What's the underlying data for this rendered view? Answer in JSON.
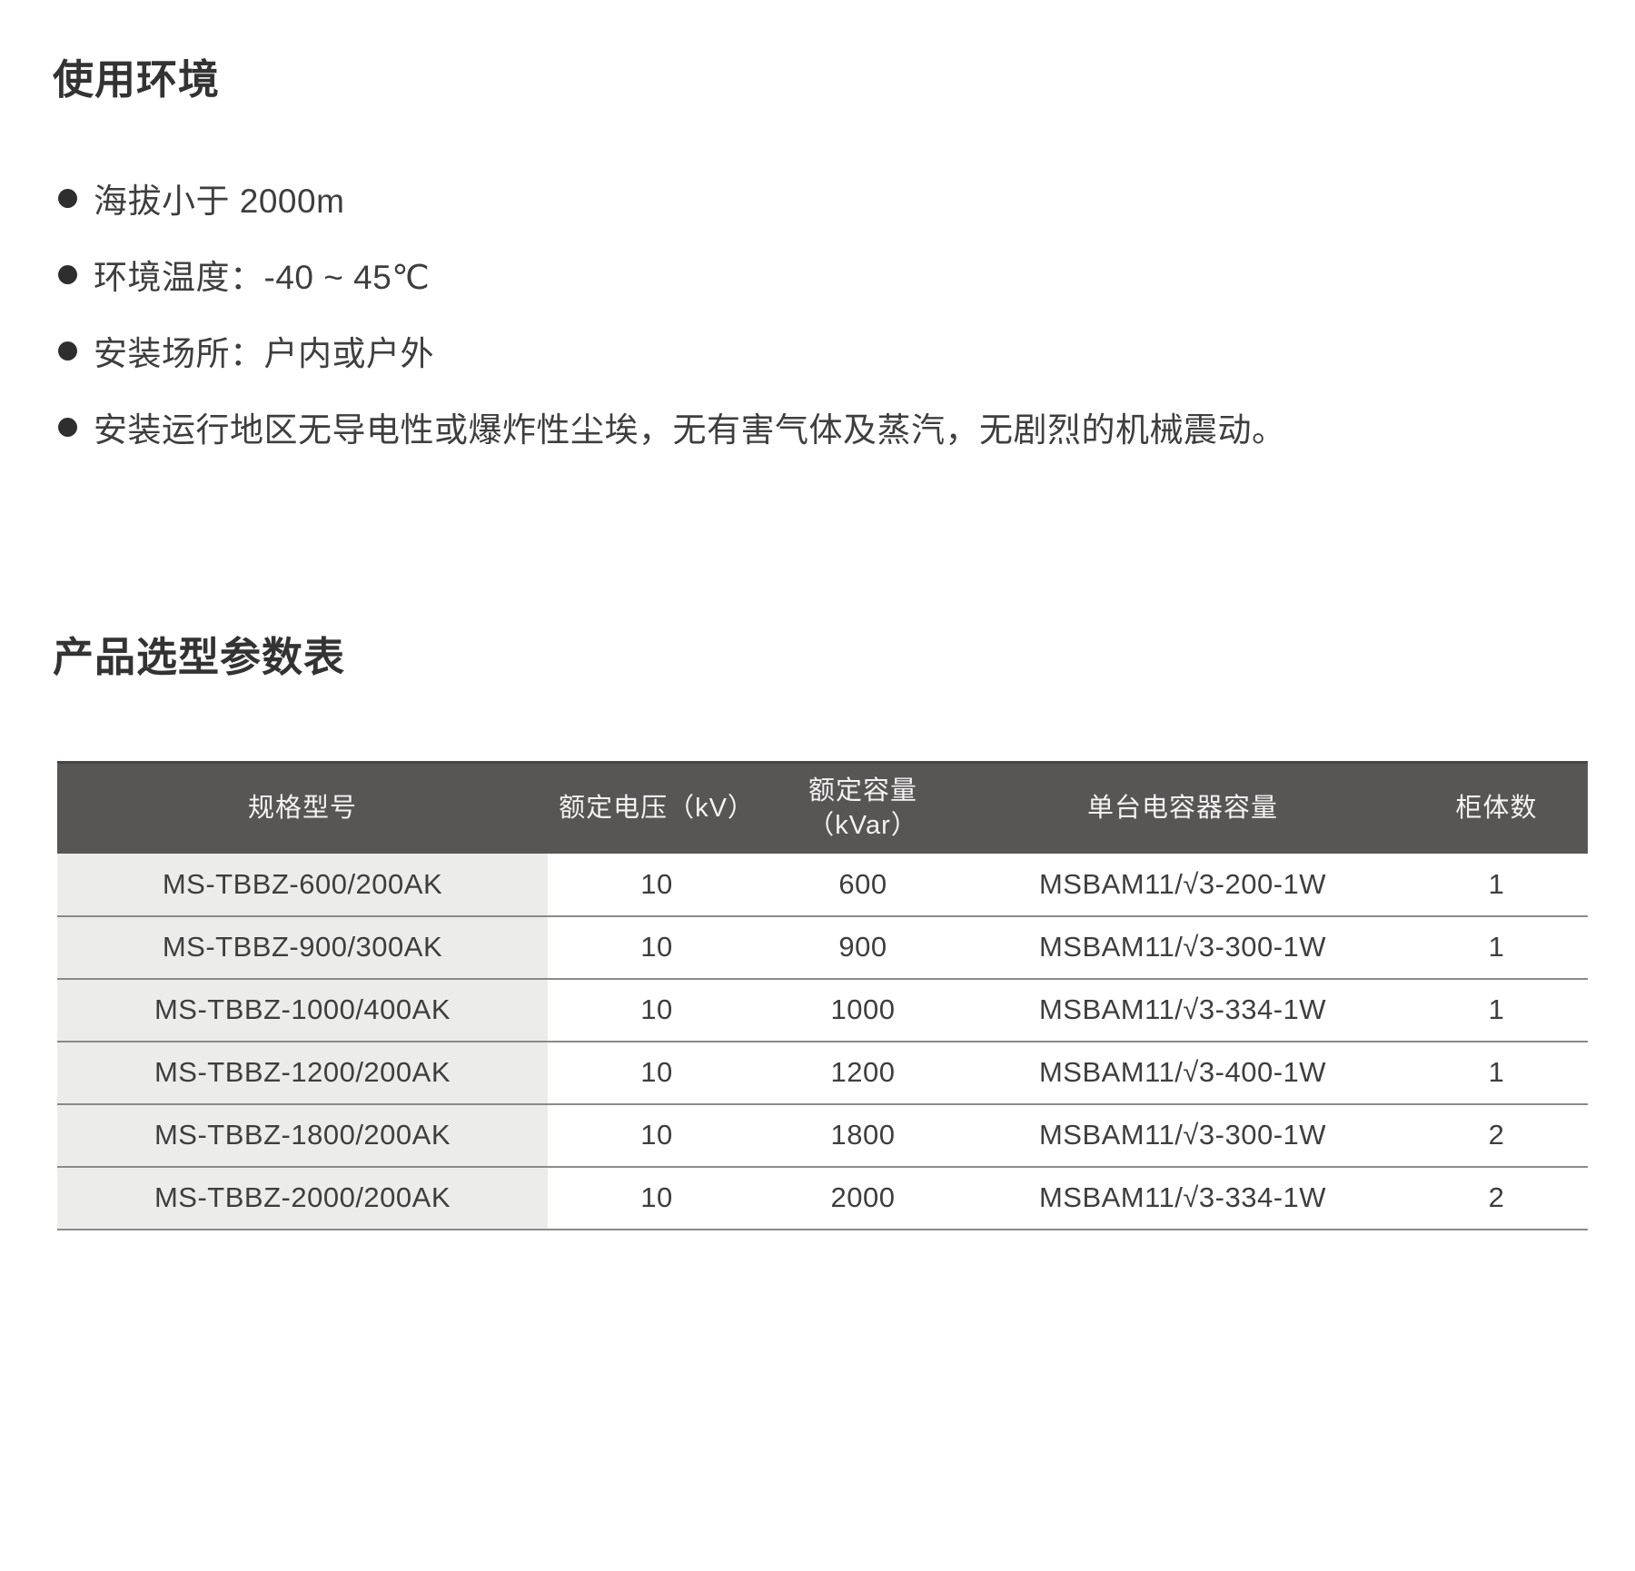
{
  "sections": {
    "environment_title": "使用环境",
    "selection_title": "产品选型参数表"
  },
  "bullets": [
    "海拔小于 2000m",
    "环境温度：-40 ~ 45℃",
    "安装场所：户内或户外",
    "安装运行地区无导电性或爆炸性尘埃，无有害气体及蒸汽，无剧烈的机械震动。"
  ],
  "table": {
    "headers": [
      "规格型号",
      "额定电压（kV）",
      "额定容量\n（kVar）",
      "单台电容器容量",
      "柜体数"
    ],
    "rows": [
      [
        "MS-TBBZ-600/200AK",
        "10",
        "600",
        "MSBAM11/√3-200-1W",
        "1"
      ],
      [
        "MS-TBBZ-900/300AK",
        "10",
        "900",
        "MSBAM11/√3-300-1W",
        "1"
      ],
      [
        "MS-TBBZ-1000/400AK",
        "10",
        "1000",
        "MSBAM11/√3-334-1W",
        "1"
      ],
      [
        "MS-TBBZ-1200/200AK",
        "10",
        "1200",
        "MSBAM11/√3-400-1W",
        "1"
      ],
      [
        "MS-TBBZ-1800/200AK",
        "10",
        "1800",
        "MSBAM11/√3-300-1W",
        "2"
      ],
      [
        "MS-TBBZ-2000/200AK",
        "10",
        "2000",
        "MSBAM11/√3-334-1W",
        "2"
      ]
    ]
  },
  "colors": {
    "header_bg": "#585555",
    "header_edge": "#484545",
    "header_text": "#f4f2f2",
    "first_col_bg": "#ececeb",
    "divider": "#8a8a8a",
    "body_text": "#3e3e3e",
    "heading_text": "#333333",
    "dot_color": "#2e2e2e"
  }
}
